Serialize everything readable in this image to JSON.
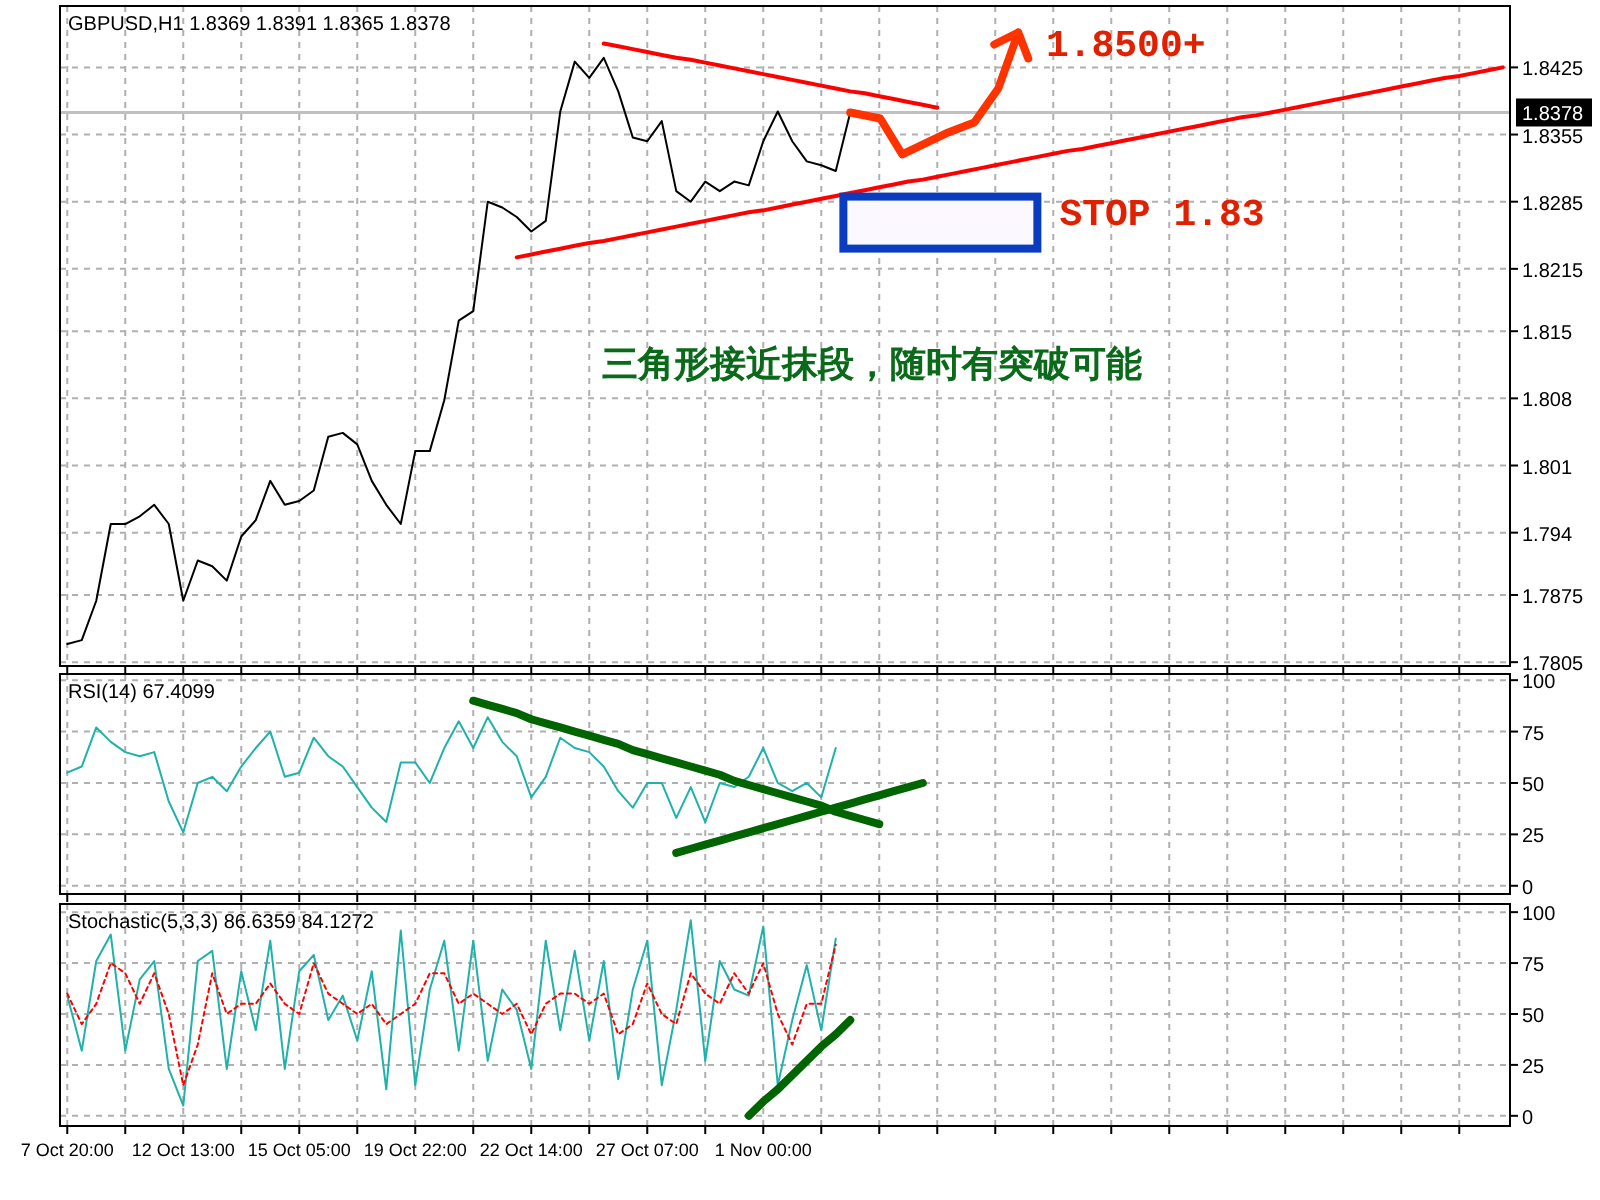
{
  "chart_data": [
    {
      "type": "line",
      "title": "GBPUSD,H1  1.8369 1.8391 1.8365 1.8378",
      "categories": [
        null,
        null,
        null,
        null,
        null,
        null,
        null,
        null,
        null,
        null,
        null,
        null,
        null,
        null,
        null,
        null,
        null,
        null,
        null,
        null,
        null,
        null,
        null,
        null,
        null,
        null,
        null,
        null,
        null,
        null,
        null,
        null,
        null,
        null,
        null,
        null,
        null,
        null,
        null,
        null,
        null,
        null,
        null,
        null,
        null,
        null,
        null,
        null,
        null,
        null,
        null,
        null,
        null,
        null,
        null,
        null,
        null,
        null,
        null,
        null,
        null,
        null,
        null,
        null,
        null,
        null,
        null,
        null,
        null,
        null,
        null,
        null,
        null,
        null,
        null,
        null,
        null,
        null,
        null,
        null,
        null,
        null,
        null,
        null,
        null,
        null,
        null,
        null,
        null,
        null,
        null,
        null,
        null,
        null,
        null,
        null,
        null,
        null,
        null,
        null
      ],
      "series": [
        {
          "color": "#000000",
          "values": [
            1.7824,
            1.7828,
            1.7869,
            1.7949,
            1.7949,
            1.7957,
            1.7969,
            1.7949,
            1.7869,
            1.7911,
            1.7905,
            1.789,
            1.7936,
            1.7953,
            1.7994,
            1.7969,
            1.7973,
            1.7984,
            1.804,
            1.8044,
            1.8032,
            1.7994,
            1.7969,
            1.7949,
            1.8025,
            1.8025,
            1.8078,
            1.8161,
            1.8171,
            1.8285,
            1.8279,
            1.8269,
            1.8254,
            1.8265,
            1.8379,
            1.8431,
            1.8414,
            1.8435,
            1.84,
            1.8352,
            1.8348,
            1.8369,
            1.8296,
            1.8285,
            1.8306,
            1.8296,
            1.8306,
            1.8302,
            1.8348,
            1.8379,
            1.8348,
            1.8327,
            1.8323,
            1.8317,
            1.8378,
            null,
            null,
            null,
            null,
            null,
            null,
            null,
            null,
            null,
            null,
            null,
            null,
            null,
            null,
            null,
            null,
            null,
            null,
            null,
            null,
            null,
            null,
            null,
            null,
            null,
            null,
            null,
            null,
            null,
            null,
            null,
            null,
            null,
            null,
            null,
            null,
            null,
            null,
            null,
            null,
            null,
            null,
            null,
            null,
            null
          ]
        },
        {
          "color": "#ff0000",
          "values": [
            null,
            null,
            null,
            null,
            null,
            null,
            null,
            null,
            null,
            null,
            null,
            null,
            null,
            null,
            null,
            null,
            null,
            null,
            null,
            null,
            null,
            null,
            null,
            null,
            null,
            null,
            null,
            null,
            null,
            null,
            null,
            null,
            null,
            null,
            null,
            null,
            null,
            1.845,
            1.8447,
            1.8444,
            1.8441,
            1.8438,
            1.8435,
            1.8433,
            1.843,
            1.8427,
            1.8424,
            1.8421,
            1.8418,
            1.8415,
            1.8412,
            1.8409,
            1.8406,
            1.8403,
            1.84,
            1.8398,
            1.8395,
            1.8392,
            1.8389,
            1.8386,
            1.8383,
            null,
            null,
            null,
            null,
            null,
            null,
            null,
            null,
            null,
            null,
            null,
            null,
            null,
            null,
            null,
            null,
            null,
            null,
            null,
            null,
            null,
            null,
            null,
            null,
            null,
            null,
            null,
            null,
            null,
            null,
            null,
            null,
            null,
            null,
            null,
            null,
            null,
            null,
            null
          ]
        },
        {
          "color": "#ff0000",
          "values": [
            null,
            null,
            null,
            null,
            null,
            null,
            null,
            null,
            null,
            null,
            null,
            null,
            null,
            null,
            null,
            null,
            null,
            null,
            null,
            null,
            null,
            null,
            null,
            null,
            null,
            null,
            null,
            null,
            null,
            null,
            null,
            1.8227,
            1.823,
            1.8233,
            1.8236,
            1.8239,
            1.8242,
            1.8244,
            1.8247,
            1.825,
            1.8253,
            1.8256,
            1.8259,
            1.8262,
            1.8265,
            1.8268,
            1.8271,
            1.8274,
            1.8276,
            1.8279,
            1.8282,
            1.8285,
            1.8288,
            1.8291,
            1.8294,
            1.8297,
            1.83,
            1.8303,
            1.8306,
            1.8308,
            1.8311,
            1.8314,
            1.8317,
            1.832,
            1.8323,
            1.8326,
            1.8329,
            1.8332,
            1.8335,
            1.8338,
            1.834,
            1.8343,
            1.8346,
            1.8349,
            1.8352,
            1.8355,
            1.8358,
            1.8361,
            1.8364,
            1.8367,
            1.837,
            1.8373,
            1.8375,
            1.8378,
            1.8381,
            1.8384,
            1.8387,
            1.839,
            1.8393,
            1.8396,
            1.8399,
            1.8402,
            1.8405,
            1.8408,
            1.8411,
            1.8414,
            1.8416,
            1.8419,
            1.8422,
            1.8425
          ]
        }
      ],
      "ylim": [
        1.7801,
        1.8489
      ],
      "yticks": [
        1.7805,
        1.7875,
        1.794,
        1.801,
        1.808,
        1.815,
        1.8215,
        1.8285,
        1.8355,
        1.8425
      ],
      "ref_lines": [
        {
          "axis": "y",
          "value": 1.8378,
          "label": "1.8378",
          "color": "#c0c0c0"
        }
      ],
      "annotations": [
        "1.8500+",
        "STOP 1.83",
        "三角形接近抹段，随时有突破可能"
      ],
      "grid": true,
      "tick_labels": "y"
    },
    {
      "type": "line",
      "title": "RSI(14)  67.4099",
      "categories": [
        null,
        null,
        null,
        null,
        null,
        null,
        null,
        null,
        null,
        null,
        null,
        null,
        null,
        null,
        null,
        null,
        null,
        null,
        null,
        null,
        null,
        null,
        null,
        null,
        null,
        null,
        null,
        null,
        null,
        null,
        null,
        null,
        null,
        null,
        null,
        null,
        null,
        null,
        null,
        null,
        null,
        null,
        null,
        null,
        null,
        null,
        null,
        null,
        null,
        null,
        null,
        null,
        null,
        null,
        null,
        null,
        null,
        null,
        null,
        null,
        null,
        null,
        null,
        null,
        null,
        null,
        null,
        null,
        null,
        null,
        null,
        null,
        null,
        null,
        null,
        null,
        null,
        null,
        null,
        null,
        null,
        null,
        null,
        null,
        null,
        null,
        null,
        null,
        null,
        null,
        null,
        null,
        null,
        null,
        null,
        null,
        null,
        null,
        null,
        null
      ],
      "series": [
        {
          "color": "#20b2aa",
          "values": [
            55,
            58,
            77,
            70,
            65,
            63,
            65,
            41,
            26,
            50,
            53,
            46,
            58,
            67,
            75,
            53,
            55,
            72,
            63,
            58,
            48,
            38,
            31,
            60,
            60,
            50,
            67,
            80,
            67,
            82,
            70,
            63,
            43,
            53,
            72,
            67,
            65,
            58,
            46,
            38,
            50,
            50,
            33,
            48,
            31,
            50,
            48,
            53,
            67,
            50,
            46,
            50,
            43,
            67,
            null,
            null,
            null,
            null,
            null,
            null,
            null,
            null,
            null,
            null,
            null,
            null,
            null,
            null,
            null,
            null,
            null,
            null,
            null,
            null,
            null,
            null,
            null,
            null,
            null,
            null,
            null,
            null,
            null,
            null,
            null,
            null,
            null,
            null,
            null,
            null,
            null,
            null,
            null,
            null,
            null,
            null,
            null,
            null,
            null,
            null
          ]
        },
        {
          "color": "#006400",
          "values": [
            null,
            null,
            null,
            null,
            null,
            null,
            null,
            null,
            null,
            null,
            null,
            null,
            null,
            null,
            null,
            null,
            null,
            null,
            null,
            null,
            null,
            null,
            null,
            null,
            null,
            null,
            null,
            null,
            90,
            88,
            86,
            84,
            81,
            79,
            77,
            75,
            73,
            71,
            69,
            66,
            64,
            62,
            60,
            58,
            56,
            54,
            51,
            49,
            47,
            45,
            43,
            41,
            39,
            36,
            34,
            32,
            30,
            null,
            null,
            null,
            null,
            null,
            null,
            null,
            null,
            null,
            null,
            null,
            null,
            null,
            null,
            null,
            null,
            null,
            null,
            null,
            null,
            null,
            null,
            null,
            null,
            null,
            null,
            null,
            null,
            null,
            null,
            null,
            null,
            null,
            null,
            null,
            null,
            null,
            null,
            null,
            null,
            null,
            null,
            null
          ]
        },
        {
          "color": "#006400",
          "values": [
            null,
            null,
            null,
            null,
            null,
            null,
            null,
            null,
            null,
            null,
            null,
            null,
            null,
            null,
            null,
            null,
            null,
            null,
            null,
            null,
            null,
            null,
            null,
            null,
            null,
            null,
            null,
            null,
            null,
            null,
            null,
            null,
            null,
            null,
            null,
            null,
            null,
            null,
            null,
            null,
            null,
            null,
            16,
            18,
            20,
            22,
            24,
            26,
            28,
            30,
            32,
            34,
            36,
            38,
            40,
            42,
            44,
            46,
            48,
            50,
            null,
            null,
            null,
            null,
            null,
            null,
            null,
            null,
            null,
            null,
            null,
            null,
            null,
            null,
            null,
            null,
            null,
            null,
            null,
            null,
            null,
            null,
            null,
            null,
            null,
            null,
            null,
            null,
            null,
            null,
            null,
            null,
            null,
            null,
            null,
            null,
            null,
            null,
            null,
            null
          ]
        }
      ],
      "ylim": [
        -4,
        103
      ],
      "yticks": [
        0,
        25,
        50,
        75,
        100
      ],
      "grid": true,
      "tick_labels": "y"
    },
    {
      "type": "line",
      "title": "Stochastic(5,3,3)  86.6359  84.1272",
      "categories": [
        "7 Oct 20:00",
        null,
        null,
        null,
        null,
        null,
        null,
        null,
        "12 Oct 13:00",
        null,
        null,
        null,
        null,
        null,
        null,
        null,
        "15 Oct 05:00",
        null,
        null,
        null,
        null,
        null,
        null,
        null,
        "19 Oct 22:00",
        null,
        null,
        null,
        null,
        null,
        null,
        null,
        "22 Oct 14:00",
        null,
        null,
        null,
        null,
        null,
        null,
        null,
        "27 Oct 07:00",
        null,
        null,
        null,
        null,
        null,
        null,
        null,
        "1 Nov 00:00",
        null,
        null,
        null,
        null,
        null,
        null,
        null,
        null,
        null,
        null,
        null,
        null,
        null,
        null,
        null,
        null,
        null,
        null,
        null,
        null,
        null,
        null,
        null,
        null,
        null,
        null,
        null,
        null,
        null,
        null,
        null,
        null,
        null,
        null,
        null,
        null,
        null,
        null,
        null,
        null,
        null,
        null,
        null,
        null,
        null,
        null,
        null,
        null,
        null,
        null,
        null
      ],
      "series": [
        {
          "color": "#20b2aa",
          "values": [
            59,
            32,
            76,
            89,
            32,
            67,
            76,
            23,
            5,
            76,
            81,
            23,
            71,
            42,
            86,
            23,
            71,
            79,
            47,
            59,
            37,
            71,
            13,
            91,
            15,
            62,
            86,
            32,
            86,
            27,
            62,
            52,
            23,
            86,
            42,
            81,
            37,
            76,
            18,
            62,
            86,
            15,
            52,
            96,
            27,
            76,
            62,
            59,
            93,
            15,
            47,
            74,
            42,
            87,
            null,
            null,
            null,
            null,
            null,
            null,
            null,
            null,
            null,
            null,
            null,
            null,
            null,
            null,
            null,
            null,
            null,
            null,
            null,
            null,
            null,
            null,
            null,
            null,
            null,
            null,
            null,
            null,
            null,
            null,
            null,
            null,
            null,
            null,
            null,
            null,
            null,
            null,
            null,
            null,
            null,
            null,
            null,
            null,
            null,
            null
          ]
        },
        {
          "color": "#ff0000",
          "line_style": "dotted",
          "values": [
            60,
            45,
            55,
            75,
            70,
            55,
            70,
            50,
            15,
            35,
            70,
            50,
            55,
            55,
            65,
            55,
            50,
            75,
            60,
            55,
            50,
            55,
            45,
            50,
            55,
            70,
            70,
            55,
            60,
            55,
            50,
            55,
            40,
            55,
            60,
            60,
            55,
            60,
            40,
            45,
            65,
            50,
            45,
            70,
            60,
            55,
            70,
            60,
            75,
            50,
            35,
            55,
            55,
            84,
            null,
            null,
            null,
            null,
            null,
            null,
            null,
            null,
            null,
            null,
            null,
            null,
            null,
            null,
            null,
            null,
            null,
            null,
            null,
            null,
            null,
            null,
            null,
            null,
            null,
            null,
            null,
            null,
            null,
            null,
            null,
            null,
            null,
            null,
            null,
            null,
            null,
            null,
            null,
            null,
            null,
            null,
            null,
            null,
            null,
            null
          ]
        },
        {
          "color": "#006400",
          "values": [
            null,
            null,
            null,
            null,
            null,
            null,
            null,
            null,
            null,
            null,
            null,
            null,
            null,
            null,
            null,
            null,
            null,
            null,
            null,
            null,
            null,
            null,
            null,
            null,
            null,
            null,
            null,
            null,
            null,
            null,
            null,
            null,
            null,
            null,
            null,
            null,
            null,
            null,
            null,
            null,
            null,
            null,
            null,
            null,
            null,
            null,
            null,
            0,
            7,
            13,
            20,
            27,
            34,
            40,
            47,
            null,
            null,
            null,
            null,
            null,
            null,
            null,
            null,
            null,
            null,
            null,
            null,
            null,
            null,
            null,
            null,
            null,
            null,
            null,
            null,
            null,
            null,
            null,
            null,
            null,
            null,
            null,
            null,
            null,
            null,
            null,
            null,
            null,
            null,
            null,
            null,
            null,
            null,
            null,
            null,
            null,
            null,
            null,
            null,
            null
          ]
        }
      ],
      "ylim": [
        -5,
        104
      ],
      "yticks": [
        0,
        25,
        50,
        75,
        100
      ],
      "grid": true
    }
  ]
}
